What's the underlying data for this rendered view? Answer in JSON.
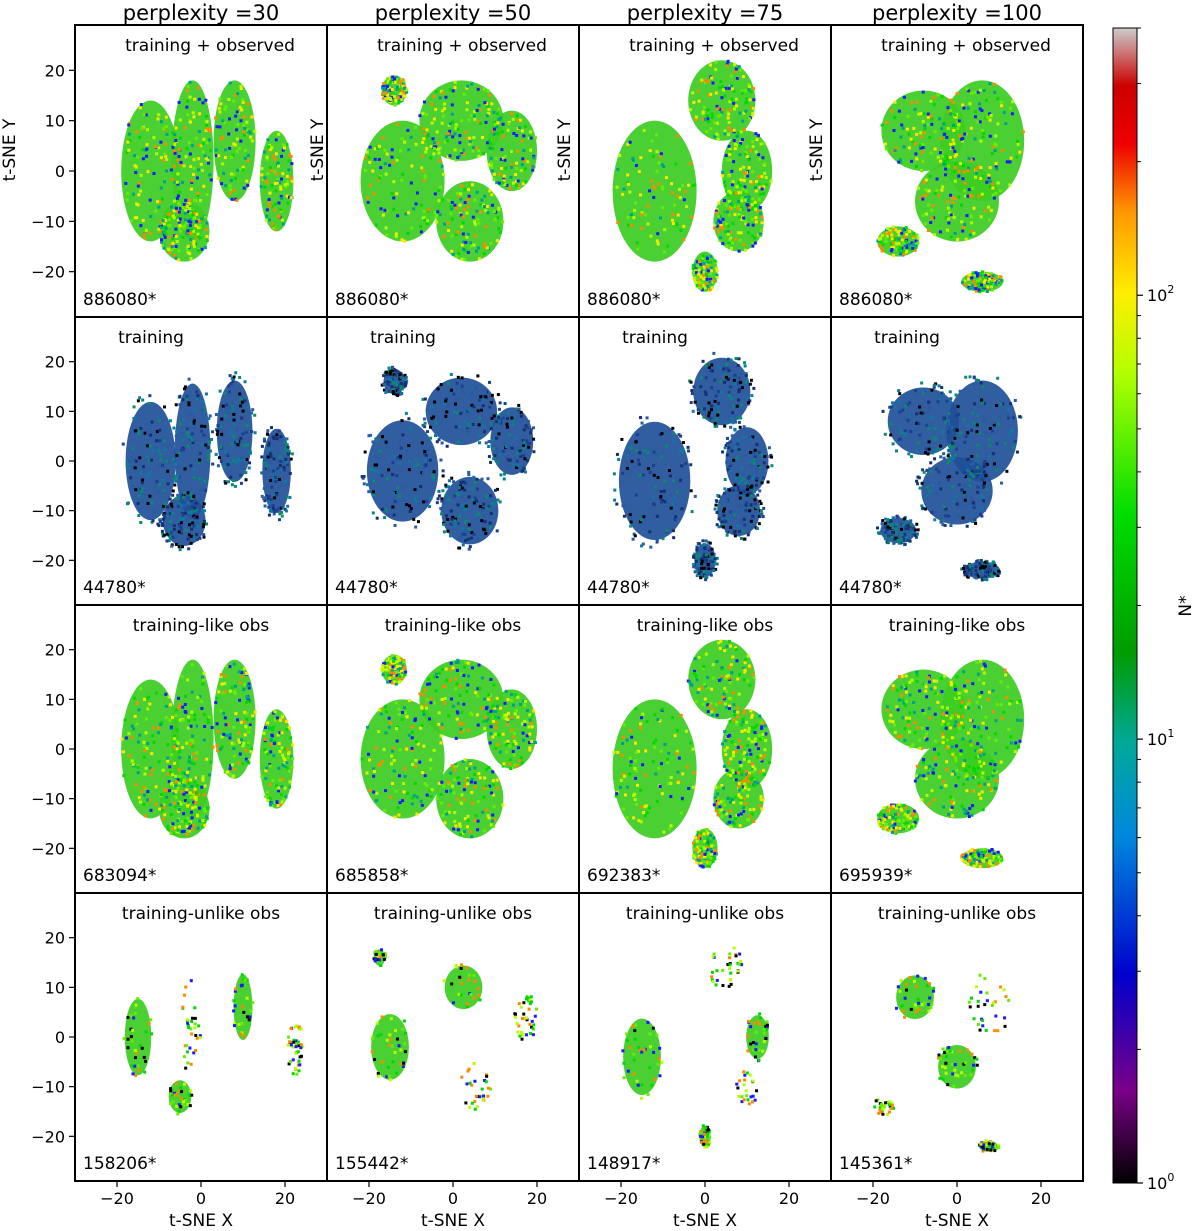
{
  "figure": {
    "column_titles": [
      "perplexity =30",
      "perplexity =50",
      "perplexity =75",
      "perplexity =100"
    ],
    "row_titles": [
      "training + observed",
      "training",
      "training-like obs",
      "training-unlike obs"
    ],
    "xlabel": "t-SNE X",
    "ylabel": "t-SNE Y",
    "colorbar": {
      "label": "N*",
      "scale": "log",
      "range": [
        1,
        400
      ],
      "ticks": [
        {
          "base": "10",
          "exp": "0"
        },
        {
          "base": "10",
          "exp": "1"
        },
        {
          "base": "10",
          "exp": "2"
        }
      ],
      "colormap": "nipy_spectral"
    }
  },
  "chart_data": {
    "type": "heatmap",
    "description_kind": "2D histogram density of t-SNE embeddings (4 rows x 4 columns)",
    "xlim": [
      -30,
      30
    ],
    "ylim": [
      -29,
      29
    ],
    "xticks": [
      -20,
      0,
      20
    ],
    "yticks": [
      20,
      10,
      0,
      -10,
      -20
    ],
    "color_scale": "log",
    "counts": [
      [
        "886080*",
        "886080*",
        "886080*",
        "886080*"
      ],
      [
        "44780*",
        "44780*",
        "44780*",
        "44780*"
      ],
      [
        "683094*",
        "685858*",
        "692383*",
        "695939*"
      ],
      [
        "158206*",
        "155442*",
        "148917*",
        "145361*"
      ]
    ]
  }
}
